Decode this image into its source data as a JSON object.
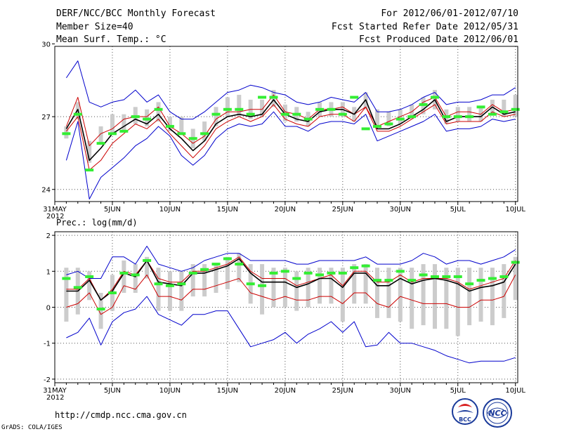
{
  "header": {
    "title": "DERF/NCC/BCC Monthly Forecast",
    "member": "Member Size=40",
    "variable": "Mean Surf. Temp.: °C",
    "period": "For 2012/06/01-2012/07/10",
    "started": "Fcst Started Refer Date 2012/05/31",
    "produced": "Fcst Produced Date 2012/06/01"
  },
  "footer": {
    "url": "http://cmdp.ncc.cma.gov.cn",
    "credit": "GrADS: COLA/IGES",
    "logo_bcc": "BCC",
    "logo_ncc": "NCC"
  },
  "colors": {
    "envelope": "#0000cc",
    "spread": "#cc0000",
    "mean": "#000000",
    "obs": "#33ee33",
    "box": "#cccccc",
    "grid": "#555555"
  },
  "chart_data": [
    {
      "type": "line",
      "title": "Mean Surf. Temp.: °C",
      "xlabel": "",
      "ylabel": "°C",
      "ylim": [
        23.5,
        29.9
      ],
      "yticks": [
        24,
        27,
        30
      ],
      "x_year_label": "2012",
      "xticks": [
        {
          "day": 0,
          "label": "31MAY"
        },
        {
          "day": 5,
          "label": "5JUN"
        },
        {
          "day": 10,
          "label": "10JUN"
        },
        {
          "day": 15,
          "label": "15JUN"
        },
        {
          "day": 20,
          "label": "20JUN"
        },
        {
          "day": 25,
          "label": "25JUN"
        },
        {
          "day": 30,
          "label": "30JUN"
        },
        {
          "day": 35,
          "label": "5JUL"
        },
        {
          "day": 40,
          "label": "10JUL"
        }
      ],
      "days": [
        1,
        2,
        3,
        4,
        5,
        6,
        7,
        8,
        9,
        10,
        11,
        12,
        13,
        14,
        15,
        16,
        17,
        18,
        19,
        20,
        21,
        22,
        23,
        24,
        25,
        26,
        27,
        28,
        29,
        30,
        31,
        32,
        33,
        34,
        35,
        36,
        37,
        38,
        39,
        40
      ],
      "max": [
        28.6,
        29.3,
        27.6,
        27.4,
        27.6,
        27.7,
        28.1,
        27.6,
        27.9,
        27.2,
        26.9,
        26.9,
        27.2,
        27.6,
        28.0,
        28.1,
        28.3,
        28.2,
        28.0,
        27.9,
        27.6,
        27.5,
        27.6,
        27.8,
        27.7,
        27.6,
        28.0,
        27.2,
        27.2,
        27.3,
        27.5,
        27.8,
        28.0,
        27.5,
        27.6,
        27.6,
        27.7,
        27.9,
        27.9,
        28.2
      ],
      "spread_hi": [
        26.6,
        27.8,
        25.8,
        26.3,
        26.5,
        26.9,
        27.0,
        27.0,
        27.4,
        26.6,
        26.3,
        25.9,
        26.2,
        26.9,
        27.2,
        27.2,
        27.3,
        27.3,
        27.9,
        27.2,
        27.1,
        26.9,
        27.3,
        27.3,
        27.4,
        27.1,
        27.4,
        26.6,
        26.8,
        27.0,
        27.2,
        27.6,
        27.8,
        27.0,
        27.2,
        27.2,
        27.1,
        27.5,
        27.2,
        27.3
      ],
      "mean": [
        26.5,
        27.3,
        25.2,
        25.7,
        26.3,
        26.6,
        26.9,
        26.7,
        27.1,
        26.5,
        26.1,
        25.6,
        26.0,
        26.7,
        27.0,
        27.1,
        27.0,
        27.1,
        27.7,
        27.1,
        26.9,
        26.8,
        27.2,
        27.3,
        27.3,
        27.1,
        27.7,
        26.5,
        26.5,
        26.7,
        27.0,
        27.3,
        27.7,
        26.8,
        27.0,
        27.0,
        27.0,
        27.4,
        27.1,
        27.2
      ],
      "spread_lo": [
        26.4,
        27.0,
        24.8,
        25.2,
        25.9,
        26.3,
        26.7,
        26.5,
        26.9,
        26.3,
        25.8,
        25.3,
        25.8,
        26.5,
        26.8,
        27.0,
        26.8,
        27.0,
        27.5,
        26.9,
        26.7,
        26.6,
        27.0,
        27.1,
        27.1,
        26.8,
        27.4,
        26.4,
        26.4,
        26.6,
        26.9,
        27.2,
        27.5,
        26.7,
        26.8,
        26.8,
        26.8,
        27.2,
        27.0,
        27.1
      ],
      "min": [
        25.2,
        26.8,
        23.6,
        24.5,
        24.9,
        25.3,
        25.8,
        26.1,
        26.6,
        26.2,
        25.4,
        25.0,
        25.4,
        26.1,
        26.5,
        26.7,
        26.6,
        26.7,
        27.2,
        26.6,
        26.6,
        26.4,
        26.7,
        26.8,
        26.8,
        26.7,
        27.1,
        26.0,
        26.2,
        26.4,
        26.6,
        26.8,
        27.1,
        26.4,
        26.5,
        26.5,
        26.6,
        26.9,
        26.8,
        26.9
      ],
      "box_lo": [
        26.1,
        26.9,
        25.1,
        25.9,
        26.3,
        26.4,
        26.7,
        26.6,
        26.8,
        26.4,
        26.3,
        25.7,
        26.0,
        26.6,
        27.0,
        27.0,
        26.9,
        27.0,
        27.4,
        26.8,
        26.8,
        26.6,
        27.0,
        27.0,
        27.0,
        26.8,
        27.3,
        26.6,
        26.6,
        26.7,
        26.9,
        27.1,
        27.3,
        26.7,
        26.8,
        26.8,
        26.8,
        27.1,
        27.0,
        27.0
      ],
      "box_hi": [
        26.6,
        27.6,
        26.0,
        26.6,
        27.1,
        27.1,
        27.4,
        27.3,
        27.6,
        27.0,
        27.0,
        26.5,
        26.8,
        27.4,
        27.8,
        27.9,
        27.7,
        27.7,
        28.1,
        27.5,
        27.4,
        27.2,
        27.6,
        27.6,
        27.6,
        27.4,
        28.0,
        27.3,
        27.2,
        27.3,
        27.5,
        27.8,
        28.1,
        27.3,
        27.4,
        27.4,
        27.4,
        27.7,
        27.7,
        27.9
      ],
      "observed": [
        26.3,
        27.1,
        24.8,
        25.9,
        26.3,
        26.4,
        27.0,
        26.9,
        27.3,
        26.6,
        26.3,
        26.1,
        26.3,
        27.1,
        27.3,
        27.3,
        27.1,
        27.8,
        27.8,
        27.1,
        27.1,
        26.9,
        27.3,
        27.3,
        27.1,
        27.8,
        26.5,
        26.6,
        26.7,
        26.9,
        27.0,
        27.5,
        27.8,
        27.0,
        27.0,
        27.0,
        27.4,
        27.1,
        27.2,
        27.3
      ]
    },
    {
      "type": "line",
      "title": "Prec.: log(mm/d)",
      "xlabel": "",
      "ylabel": "log(mm/d)",
      "ylim": [
        -2.1,
        2.1
      ],
      "yticks": [
        -2,
        -1,
        0,
        1,
        2
      ],
      "x_year_label": "2012",
      "xticks": [
        {
          "day": 0,
          "label": "31MAY"
        },
        {
          "day": 5,
          "label": "5JUN"
        },
        {
          "day": 10,
          "label": "10JUN"
        },
        {
          "day": 15,
          "label": "15JUN"
        },
        {
          "day": 20,
          "label": "20JUN"
        },
        {
          "day": 25,
          "label": "25JUN"
        },
        {
          "day": 30,
          "label": "30JUN"
        },
        {
          "day": 35,
          "label": "5JUL"
        },
        {
          "day": 40,
          "label": "10JUL"
        }
      ],
      "days": [
        1,
        2,
        3,
        4,
        5,
        6,
        7,
        8,
        9,
        10,
        11,
        12,
        13,
        14,
        15,
        16,
        17,
        18,
        19,
        20,
        21,
        22,
        23,
        24,
        25,
        26,
        27,
        28,
        29,
        30,
        31,
        32,
        33,
        34,
        35,
        36,
        37,
        38,
        39,
        40
      ],
      "max": [
        0.9,
        1.0,
        0.8,
        0.8,
        1.4,
        1.4,
        1.2,
        1.7,
        1.2,
        1.1,
        1.0,
        1.1,
        1.3,
        1.4,
        1.5,
        1.5,
        1.3,
        1.3,
        1.3,
        1.3,
        1.2,
        1.2,
        1.3,
        1.3,
        1.3,
        1.3,
        1.4,
        1.2,
        1.2,
        1.2,
        1.3,
        1.5,
        1.4,
        1.2,
        1.3,
        1.3,
        1.2,
        1.3,
        1.4,
        1.6
      ],
      "spread_hi": [
        0.5,
        0.5,
        0.8,
        0.2,
        0.5,
        1.0,
        0.9,
        1.3,
        0.8,
        0.7,
        0.7,
        1.0,
        1.0,
        1.1,
        1.2,
        1.4,
        1.0,
        0.8,
        0.8,
        0.8,
        0.6,
        0.7,
        0.8,
        0.9,
        0.6,
        1.0,
        1.0,
        0.7,
        0.7,
        0.9,
        0.7,
        0.8,
        0.8,
        0.8,
        0.7,
        0.5,
        0.6,
        0.7,
        0.8,
        1.3
      ],
      "mean": [
        0.45,
        0.45,
        0.75,
        0.2,
        0.45,
        0.95,
        0.85,
        1.3,
        0.7,
        0.65,
        0.6,
        0.95,
        0.95,
        1.05,
        1.15,
        1.35,
        0.95,
        0.7,
        0.7,
        0.7,
        0.55,
        0.65,
        0.8,
        0.8,
        0.55,
        0.95,
        0.95,
        0.6,
        0.6,
        0.8,
        0.65,
        0.75,
        0.8,
        0.75,
        0.65,
        0.45,
        0.55,
        0.6,
        0.7,
        1.2
      ],
      "spread_lo": [
        0.0,
        0.1,
        0.4,
        -0.2,
        0.0,
        0.6,
        0.5,
        0.9,
        0.3,
        0.3,
        0.2,
        0.5,
        0.5,
        0.6,
        0.7,
        0.8,
        0.4,
        0.3,
        0.2,
        0.3,
        0.2,
        0.2,
        0.3,
        0.3,
        0.1,
        0.4,
        0.4,
        0.1,
        0.0,
        0.3,
        0.2,
        0.1,
        0.1,
        0.1,
        0.0,
        0.0,
        0.2,
        0.2,
        0.3,
        0.9
      ],
      "min": [
        -0.85,
        -0.7,
        -0.3,
        -1.05,
        -0.4,
        -0.15,
        -0.05,
        0.3,
        -0.2,
        -0.35,
        -0.5,
        -0.2,
        -0.2,
        -0.1,
        -0.1,
        -0.6,
        -1.1,
        -1.0,
        -0.9,
        -0.7,
        -1.0,
        -0.75,
        -0.6,
        -0.4,
        -0.7,
        -0.4,
        -1.1,
        -1.05,
        -0.7,
        -1.0,
        -1.0,
        -1.1,
        -1.2,
        -1.35,
        -1.45,
        -1.55,
        -1.5,
        -1.5,
        -1.5,
        -1.4
      ],
      "box_lo": [
        -0.4,
        -0.2,
        0.2,
        -0.6,
        -0.1,
        0.4,
        0.4,
        0.8,
        -0.1,
        -0.1,
        -0.1,
        0.3,
        0.3,
        0.4,
        0.5,
        0.7,
        0.1,
        -0.2,
        0.0,
        0.0,
        -0.1,
        0.0,
        0.1,
        0.1,
        -0.4,
        0.1,
        0.1,
        -0.3,
        -0.3,
        -0.4,
        -0.6,
        -0.5,
        -0.6,
        -0.6,
        -0.8,
        -0.5,
        -0.4,
        -0.5,
        -0.3,
        0.2
      ],
      "box_hi": [
        1.1,
        1.1,
        1.0,
        0.4,
        0.9,
        1.3,
        1.2,
        1.4,
        1.1,
        1.0,
        1.0,
        1.2,
        1.2,
        1.2,
        1.4,
        1.5,
        1.2,
        1.2,
        1.1,
        1.1,
        1.0,
        1.1,
        1.1,
        1.1,
        1.1,
        1.2,
        1.2,
        1.1,
        1.1,
        1.1,
        1.1,
        1.2,
        1.2,
        1.1,
        1.1,
        1.1,
        1.1,
        1.1,
        1.2,
        1.4
      ],
      "observed": [
        0.8,
        0.55,
        0.85,
        -0.05,
        0.4,
        0.95,
        0.9,
        1.3,
        0.65,
        0.6,
        0.65,
        0.95,
        1.05,
        1.2,
        1.35,
        1.2,
        0.65,
        0.6,
        0.95,
        1.0,
        0.8,
        0.95,
        0.9,
        0.95,
        0.95,
        1.1,
        1.15,
        0.75,
        0.75,
        1.0,
        0.75,
        0.9,
        0.85,
        0.85,
        0.85,
        0.65,
        0.75,
        0.8,
        0.85,
        1.25
      ]
    }
  ]
}
